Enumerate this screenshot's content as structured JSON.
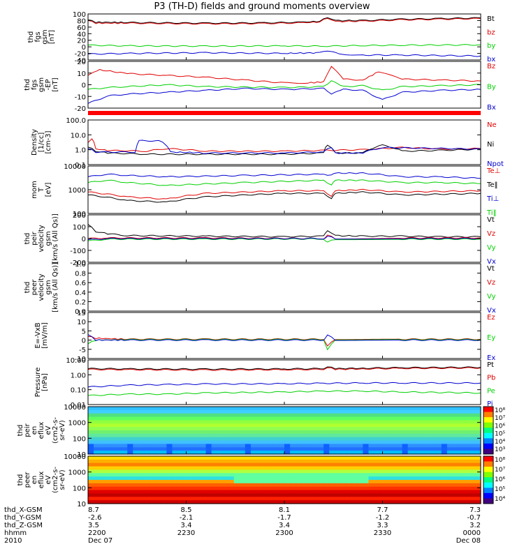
{
  "title": "P3 (TH-D) fields and ground moments overview",
  "colors": {
    "black": "#000000",
    "red": "#e00000",
    "green": "#00d000",
    "blue": "#0000d0"
  },
  "chart_data": [
    {
      "id": "fgs_gsm",
      "type": "line",
      "ylabel": [
        "thd",
        "fgs",
        "gsm",
        "[nT]"
      ],
      "yticks": [
        "100",
        "80",
        "60",
        "40",
        "20",
        "0",
        "-20",
        "-40"
      ],
      "ylim": [
        -40,
        100
      ],
      "legend": [
        {
          "label": "Bt",
          "color": "black"
        },
        {
          "label": "bz",
          "color": "red"
        },
        {
          "label": "by",
          "color": "green"
        },
        {
          "label": "bx",
          "color": "blue"
        }
      ],
      "series": [
        {
          "name": "Bt",
          "color": "black",
          "x": [
            0,
            0.02,
            0.1,
            0.3,
            0.45,
            0.55,
            0.59,
            0.61,
            0.63,
            0.7,
            0.8,
            0.9,
            1
          ],
          "y": [
            82,
            75,
            74,
            72,
            73,
            75,
            78,
            90,
            80,
            80,
            84,
            86,
            88
          ]
        },
        {
          "name": "bz",
          "color": "red",
          "x": [
            0,
            0.02,
            0.1,
            0.3,
            0.45,
            0.55,
            0.59,
            0.61,
            0.63,
            0.7,
            0.8,
            0.9,
            1
          ],
          "y": [
            80,
            72,
            72,
            70,
            71,
            73,
            76,
            88,
            77,
            78,
            82,
            84,
            86
          ]
        },
        {
          "name": "by",
          "color": "green",
          "x": [
            0,
            0.1,
            0.3,
            0.5,
            0.6,
            0.7,
            0.8,
            1
          ],
          "y": [
            5,
            3,
            2,
            3,
            2,
            4,
            5,
            6
          ]
        },
        {
          "name": "bx",
          "color": "blue",
          "x": [
            0,
            0.1,
            0.3,
            0.5,
            0.59,
            0.61,
            0.64,
            0.7,
            0.8,
            1
          ],
          "y": [
            -22,
            -20,
            -18,
            -20,
            -18,
            -12,
            -22,
            -25,
            -25,
            -28
          ]
        }
      ]
    },
    {
      "id": "fgs_gsm_ep",
      "type": "line",
      "ylabel": [
        "thd",
        "fgs",
        "gsm",
        "-EP",
        "[nT]"
      ],
      "yticks": [
        "20",
        "10",
        "0",
        "-10",
        "-20"
      ],
      "ylim": [
        -25,
        25
      ],
      "legend": [
        {
          "label": "Bz",
          "color": "red"
        },
        {
          "label": "By",
          "color": "green"
        },
        {
          "label": "Bx",
          "color": "blue"
        }
      ],
      "series": [
        {
          "name": "Bz",
          "color": "red",
          "x": [
            0,
            0.03,
            0.1,
            0.2,
            0.3,
            0.4,
            0.5,
            0.56,
            0.6,
            0.62,
            0.65,
            0.7,
            0.74,
            0.8,
            0.9,
            1
          ],
          "y": [
            10,
            16,
            12,
            10,
            8,
            5,
            2,
            2,
            3,
            20,
            6,
            5,
            14,
            6,
            5,
            4
          ]
        },
        {
          "name": "By",
          "color": "green",
          "x": [
            0,
            0.05,
            0.1,
            0.2,
            0.3,
            0.5,
            0.6,
            0.62,
            0.65,
            0.7,
            0.75,
            0.8,
            0.9,
            1
          ],
          "y": [
            -5,
            -3,
            -2,
            0,
            -2,
            -3,
            -2,
            4,
            -2,
            -1,
            -6,
            -2,
            -1,
            0
          ]
        },
        {
          "name": "Bx",
          "color": "blue",
          "x": [
            0,
            0.05,
            0.1,
            0.2,
            0.3,
            0.4,
            0.5,
            0.6,
            0.62,
            0.65,
            0.7,
            0.75,
            0.8,
            0.9,
            1
          ],
          "y": [
            -20,
            -12,
            -10,
            -8,
            -6,
            -4,
            -5,
            -4,
            -10,
            -5,
            -6,
            -16,
            -8,
            -6,
            -5
          ]
        }
      ]
    },
    {
      "id": "density",
      "type": "line",
      "log": true,
      "ylabel": [
        "Density",
        "[1/cc]",
        "[cm-3]"
      ],
      "yticks": [
        "100.0",
        "10.0",
        "1.0",
        "0.1"
      ],
      "ylim": [
        0.1,
        100
      ],
      "legend": [
        {
          "label": "Ne",
          "color": "red"
        },
        {
          "label": "Ni",
          "color": "black"
        },
        {
          "label": "Npot",
          "color": "blue"
        }
      ],
      "series": [
        {
          "name": "Ne",
          "color": "red",
          "x": [
            0,
            0.01,
            0.02,
            0.05,
            0.15,
            0.2,
            0.3,
            0.5,
            0.6,
            0.7,
            0.8,
            0.9,
            1
          ],
          "y": [
            3,
            5,
            1.2,
            0.9,
            0.8,
            1.2,
            0.8,
            0.8,
            0.9,
            1,
            1.4,
            1.1,
            1.2
          ]
        },
        {
          "name": "Ni",
          "color": "black",
          "x": [
            0,
            0.02,
            0.05,
            0.15,
            0.3,
            0.5,
            0.6,
            0.61,
            0.63,
            0.7,
            0.75,
            0.8,
            0.9,
            1
          ],
          "y": [
            1.5,
            0.8,
            0.6,
            0.5,
            0.5,
            0.5,
            0.6,
            2.2,
            0.6,
            0.6,
            2,
            0.8,
            0.9,
            1.1
          ]
        },
        {
          "name": "Npot",
          "color": "blue",
          "x": [
            0,
            0.02,
            0.12,
            0.13,
            0.18,
            0.2,
            0.21,
            0.3,
            0.5,
            0.6,
            0.62,
            0.63,
            0.7,
            0.75,
            1
          ],
          "y": [
            1.2,
            0.7,
            0.7,
            4,
            4,
            2,
            0.7,
            0.6,
            0.6,
            0.7,
            1.5,
            0.6,
            0.6,
            1.4,
            1.1
          ]
        }
      ]
    },
    {
      "id": "mom_temp",
      "type": "line",
      "log": true,
      "ylabel": [
        "mom",
        "T",
        "[eV]"
      ],
      "yticks": [
        "10000",
        "1000",
        "100"
      ],
      "ylim": [
        100,
        10000
      ],
      "legend": [
        {
          "label": "Te⊥",
          "color": "red"
        },
        {
          "label": "Te‖",
          "color": "black"
        },
        {
          "label": "Ti⊥",
          "color": "blue"
        },
        {
          "label": "Ti‖",
          "color": "green"
        }
      ],
      "series": [
        {
          "name": "Te⊥",
          "color": "red",
          "x": [
            0,
            0.1,
            0.2,
            0.3,
            0.5,
            0.6,
            0.62,
            0.63,
            0.7,
            0.8,
            1
          ],
          "y": [
            800,
            500,
            400,
            700,
            900,
            900,
            500,
            900,
            1000,
            800,
            900
          ]
        },
        {
          "name": "Te‖",
          "color": "black",
          "x": [
            0,
            0.1,
            0.2,
            0.3,
            0.5,
            0.6,
            0.62,
            0.63,
            0.7,
            0.8,
            1
          ],
          "y": [
            600,
            350,
            300,
            500,
            700,
            700,
            400,
            700,
            800,
            600,
            700
          ]
        },
        {
          "name": "Ti⊥",
          "color": "blue",
          "x": [
            0,
            0.05,
            0.1,
            0.2,
            0.4,
            0.6,
            0.62,
            0.63,
            0.7,
            0.8,
            0.9,
            1
          ],
          "y": [
            3500,
            4500,
            4000,
            3500,
            4000,
            4500,
            4000,
            5000,
            5000,
            3500,
            3500,
            3000
          ]
        },
        {
          "name": "Ti‖",
          "color": "green",
          "x": [
            0,
            0.05,
            0.1,
            0.2,
            0.4,
            0.6,
            0.62,
            0.63,
            0.7,
            0.8,
            0.9,
            1
          ],
          "y": [
            2000,
            2500,
            2000,
            1500,
            2000,
            2500,
            1500,
            2500,
            2500,
            2000,
            2000,
            1800
          ]
        }
      ]
    },
    {
      "id": "peir_vel",
      "type": "line",
      "ylabel": [
        "thd",
        "peir",
        "velocity",
        "gsm",
        "[km/s (All Qs)]"
      ],
      "yticks": [
        "200",
        "100",
        "0",
        "-100",
        "-200"
      ],
      "ylim": [
        -200,
        200
      ],
      "legend": [
        {
          "label": "Vt",
          "color": "black"
        },
        {
          "label": "Vz",
          "color": "red"
        },
        {
          "label": "Vy",
          "color": "green"
        },
        {
          "label": "Vx",
          "color": "blue"
        }
      ],
      "series": [
        {
          "name": "Vt",
          "color": "black",
          "x": [
            0,
            0.02,
            0.05,
            0.1,
            0.3,
            0.5,
            0.6,
            0.61,
            0.63,
            0.7,
            0.8,
            0.9,
            1
          ],
          "y": [
            120,
            60,
            40,
            25,
            20,
            15,
            20,
            70,
            25,
            20,
            20,
            15,
            15
          ]
        },
        {
          "name": "Vz",
          "color": "red",
          "x": [
            0,
            0.05,
            0.3,
            0.6,
            0.61,
            0.63,
            0.8,
            1
          ],
          "y": [
            0,
            5,
            5,
            0,
            30,
            0,
            5,
            5
          ]
        },
        {
          "name": "Vy",
          "color": "green",
          "x": [
            0,
            0.05,
            0.3,
            0.6,
            0.61,
            0.63,
            0.8,
            1
          ],
          "y": [
            -20,
            -5,
            -5,
            -3,
            -30,
            -5,
            -5,
            -5
          ]
        },
        {
          "name": "Vx",
          "color": "blue",
          "x": [
            0,
            0.05,
            0.3,
            0.6,
            0.61,
            0.63,
            0.8,
            1
          ],
          "y": [
            -10,
            0,
            0,
            0,
            20,
            0,
            0,
            0
          ]
        }
      ]
    },
    {
      "id": "peer_vel",
      "type": "line",
      "ylabel": [
        "thd",
        "peer",
        "velocity",
        "gsm",
        "[km/s (All Qs)]"
      ],
      "yticks": [
        "1.0",
        "0.8",
        "0.6",
        "0.4",
        "0.2",
        "0.0"
      ],
      "ylim": [
        0,
        1
      ],
      "legend": [
        {
          "label": "Vt",
          "color": "black"
        },
        {
          "label": "Vz",
          "color": "red"
        },
        {
          "label": "Vy",
          "color": "green"
        },
        {
          "label": "Vx",
          "color": "blue"
        }
      ],
      "series": []
    },
    {
      "id": "efield",
      "type": "line",
      "ylabel": [
        "E=-VxB",
        "[mV/m]"
      ],
      "yticks": [
        "15",
        "10",
        "5",
        "0",
        "-5",
        "-10"
      ],
      "ylim": [
        -10,
        15
      ],
      "legend": [
        {
          "label": "Ez",
          "color": "red"
        },
        {
          "label": "Ey",
          "color": "green"
        },
        {
          "label": "Ex",
          "color": "blue"
        }
      ],
      "series": [
        {
          "name": "Ez",
          "color": "red",
          "x": [
            0,
            0.02,
            0.1,
            0.3,
            0.6,
            0.61,
            0.63,
            0.8,
            1
          ],
          "y": [
            2,
            1,
            0.5,
            0.5,
            0.5,
            -3,
            0.5,
            0.5,
            0.5
          ]
        },
        {
          "name": "Ey",
          "color": "green",
          "x": [
            0,
            0.02,
            0.1,
            0.3,
            0.6,
            0.61,
            0.63,
            0.8,
            1
          ],
          "y": [
            -2,
            0,
            0.3,
            0.3,
            0.3,
            -5,
            0.3,
            0.3,
            0.3
          ]
        },
        {
          "name": "Ex",
          "color": "blue",
          "x": [
            0,
            0.02,
            0.1,
            0.3,
            0.6,
            0.61,
            0.63,
            0.8,
            1
          ],
          "y": [
            3,
            0,
            0,
            0,
            0,
            3,
            0,
            0,
            0
          ]
        }
      ]
    },
    {
      "id": "pressure",
      "type": "line",
      "log": true,
      "ylabel": [
        "Pressure",
        "[nPa]"
      ],
      "yticks": [
        "10.00",
        "1.00",
        "0.10",
        "0.01"
      ],
      "ylim": [
        0.01,
        10
      ],
      "legend": [
        {
          "label": "Pt",
          "color": "black"
        },
        {
          "label": "Pb",
          "color": "red"
        },
        {
          "label": "Pe",
          "color": "green"
        },
        {
          "label": "Pi",
          "color": "blue"
        }
      ],
      "series": [
        {
          "name": "Pt",
          "color": "black",
          "x": [
            0,
            0.1,
            0.3,
            0.5,
            0.6,
            0.61,
            0.63,
            0.7,
            0.8,
            1
          ],
          "y": [
            2.6,
            2.5,
            2.4,
            2.5,
            2.6,
            3.6,
            2.6,
            2.8,
            3,
            3.2
          ]
        },
        {
          "name": "Pb",
          "color": "red",
          "x": [
            0,
            0.1,
            0.3,
            0.5,
            0.6,
            0.61,
            0.63,
            0.7,
            0.8,
            1
          ],
          "y": [
            2.3,
            2.2,
            2.1,
            2.2,
            2.3,
            3.2,
            2.3,
            2.5,
            2.7,
            2.9
          ]
        },
        {
          "name": "Pe",
          "color": "green",
          "x": [
            0,
            0.1,
            0.2,
            0.3,
            0.5,
            0.6,
            0.7,
            0.8,
            1
          ],
          "y": [
            0.04,
            0.05,
            0.05,
            0.06,
            0.07,
            0.08,
            0.08,
            0.07,
            0.06
          ]
        },
        {
          "name": "Pi",
          "color": "blue",
          "x": [
            0,
            0.1,
            0.2,
            0.3,
            0.5,
            0.6,
            0.7,
            0.8,
            1
          ],
          "y": [
            0.15,
            0.2,
            0.22,
            0.24,
            0.25,
            0.27,
            0.28,
            0.28,
            0.28
          ]
        }
      ]
    },
    {
      "id": "peir_spec",
      "type": "heatmap",
      "ylabel": [
        "thd",
        "peir",
        "en",
        "eflux",
        "eV",
        "(cm2-s-",
        "sr-eV)"
      ],
      "yticks": [
        "10000",
        "1000",
        "100",
        "10"
      ],
      "ylim": [
        10,
        20000
      ],
      "colorbar": {
        "ticks": [
          "10⁸",
          "10⁷",
          "10⁶",
          "10⁵",
          "10⁴",
          "10³"
        ]
      }
    },
    {
      "id": "peer_spec",
      "type": "heatmap",
      "ylabel": [
        "thd",
        "peer",
        "en",
        "eflux",
        "eV",
        "(cm2-s-",
        "sr-eV)"
      ],
      "yticks": [
        "10000",
        "1000",
        "100",
        "10"
      ],
      "ylim": [
        10,
        20000
      ],
      "colorbar": {
        "ticks": [
          "10⁸",
          "10⁷",
          "10⁶",
          "10⁵",
          "10⁴"
        ]
      }
    }
  ],
  "xaxis": {
    "row_labels": [
      "thd_X-GSM",
      "thd_Y-GSM",
      "thd_Z-GSM",
      "hhmm",
      "2010"
    ],
    "columns": [
      {
        "x": 0.0,
        "vals": [
          "8.7",
          "-2.6",
          "3.5",
          "2200",
          "Dec 07"
        ]
      },
      {
        "x": 0.25,
        "vals": [
          "8.5",
          "-2.1",
          "3.4",
          "2230",
          ""
        ]
      },
      {
        "x": 0.5,
        "vals": [
          "8.1",
          "-1.7",
          "3.4",
          "2300",
          ""
        ]
      },
      {
        "x": 0.75,
        "vals": [
          "7.7",
          "-1.2",
          "3.3",
          "2330",
          ""
        ]
      },
      {
        "x": 1.0,
        "vals": [
          "7.3",
          "-0.7",
          "3.2",
          "0000",
          "Dec 08"
        ]
      }
    ]
  }
}
